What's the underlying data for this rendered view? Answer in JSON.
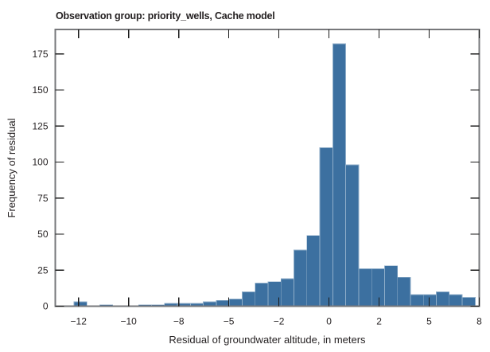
{
  "chart_data": {
    "type": "bar",
    "subtype": "histogram",
    "title": "Observation group: priority_wells, Cache model",
    "xlabel": "Residual of groundwater altitude, in meters",
    "ylabel": "Frequency of residual",
    "bin_start": -12.73,
    "bin_width": 0.646,
    "counts": [
      3,
      0,
      1,
      0,
      0,
      1,
      1,
      2,
      2,
      2,
      3,
      4,
      5,
      10,
      16,
      17,
      19,
      39,
      49,
      110,
      182,
      98,
      26,
      26,
      28,
      20,
      8,
      8,
      10,
      8,
      6
    ],
    "xlim": [
      -13.66,
      7.5
    ],
    "ylim": [
      0,
      192
    ],
    "x_ticks": [
      {
        "value": -12.5,
        "label": "−12"
      },
      {
        "value": -10,
        "label": "−10"
      },
      {
        "value": -7.5,
        "label": "−8"
      },
      {
        "value": -5,
        "label": "−5"
      },
      {
        "value": -2.5,
        "label": "−2"
      },
      {
        "value": 0,
        "label": "0"
      },
      {
        "value": 2.5,
        "label": "2"
      },
      {
        "value": 5,
        "label": "5"
      },
      {
        "value": 7.5,
        "label": "8"
      }
    ],
    "y_ticks": [
      {
        "value": 0,
        "label": "0"
      },
      {
        "value": 25,
        "label": "25"
      },
      {
        "value": 50,
        "label": "50"
      },
      {
        "value": 75,
        "label": "75"
      },
      {
        "value": 100,
        "label": "100"
      },
      {
        "value": 125,
        "label": "125"
      },
      {
        "value": 150,
        "label": "150"
      },
      {
        "value": 175,
        "label": "175"
      }
    ],
    "grid": false,
    "legend": "none",
    "ticks_direction": "in",
    "ticks_mirrored_top_right": true,
    "colors": {
      "bar_fill": "#3C70A0",
      "bar_edge": "#8FAEC9",
      "spine": "#77787B",
      "tick": "#1A1A1A",
      "text": "#231F20",
      "background": "#FFFFFF"
    }
  }
}
